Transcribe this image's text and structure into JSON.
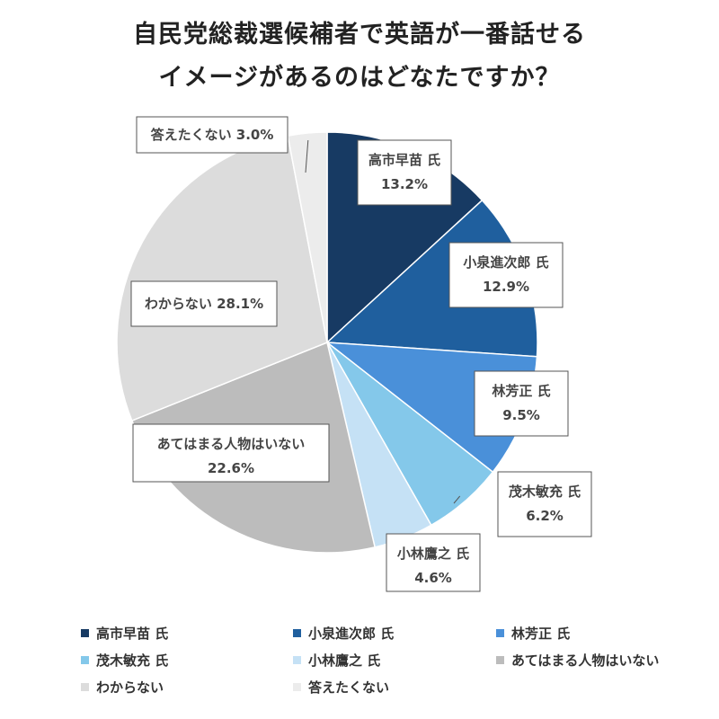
{
  "title_line1": "自民党総裁選候補者で英語が一番話せる",
  "title_line2": "イメージがあるのはどなたですか？",
  "chart_data": {
    "type": "pie",
    "title": "自民党総裁選候補者で英語が一番話せるイメージがあるのはどなたですか？",
    "unit": "%",
    "legend_position": "bottom",
    "slices": [
      {
        "label": "高市早苗 氏",
        "value": 13.2,
        "display": "13.2%",
        "color": "#173a63"
      },
      {
        "label": "小泉進次郎 氏",
        "value": 12.9,
        "display": "12.9%",
        "color": "#1f5f9e"
      },
      {
        "label": "林芳正 氏",
        "value": 9.5,
        "display": "9.5%",
        "color": "#4a90d9"
      },
      {
        "label": "茂木敏充 氏",
        "value": 6.2,
        "display": "6.2%",
        "color": "#84c8ea"
      },
      {
        "label": "小林鷹之 氏",
        "value": 4.6,
        "display": "4.6%",
        "color": "#c5e1f5"
      },
      {
        "label": "あてはまる人物はいない",
        "value": 22.6,
        "display": "22.6%",
        "color": "#bcbcbc"
      },
      {
        "label": "わからない",
        "value": 28.1,
        "display": "28.1%",
        "color": "#dcdcdc"
      },
      {
        "label": "答えたくない",
        "value": 3.0,
        "display": "3.0%",
        "color": "#ececec"
      }
    ]
  }
}
